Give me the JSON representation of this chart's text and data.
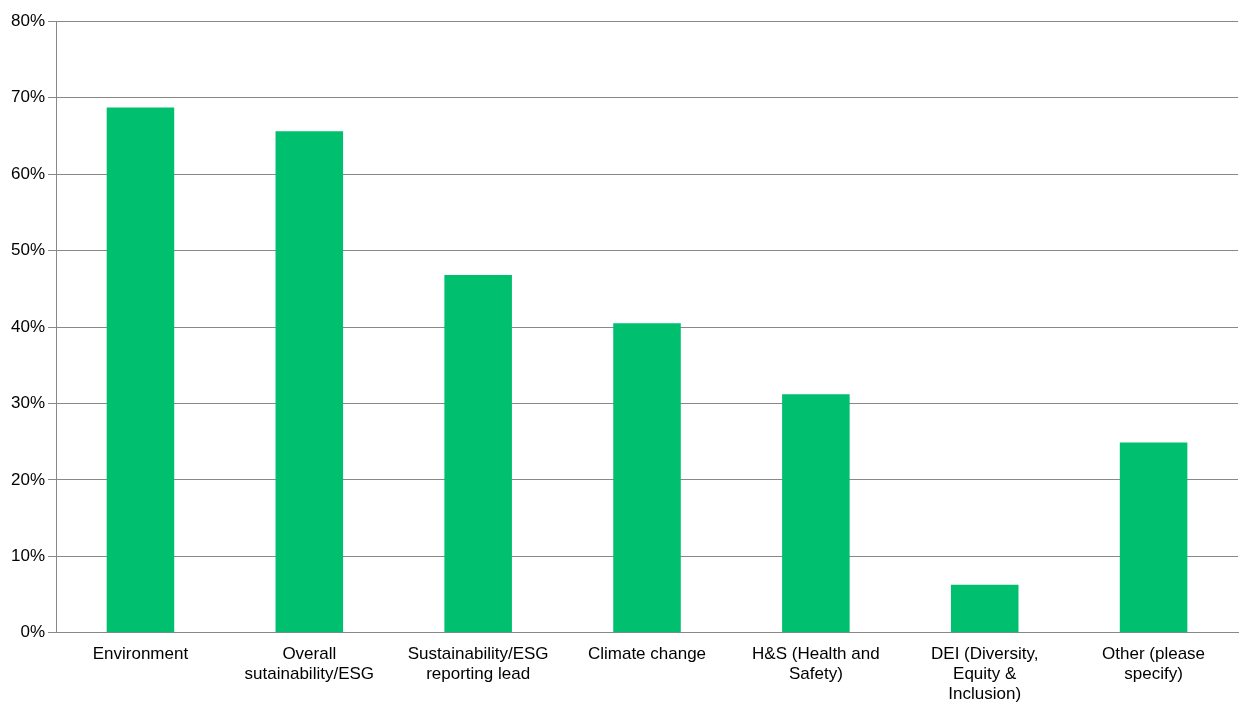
{
  "chart_data": {
    "type": "bar",
    "categories": [
      "Environment",
      "Overall sutainability/ESG",
      "Sustainability/ESG reporting lead",
      "Climate change",
      "H&S (Health and Safety)",
      "DEI (Diversity, Equity & Inclusion)",
      "Other (please specify)"
    ],
    "values": [
      68.7,
      65.6,
      46.8,
      40.5,
      31.2,
      6.3,
      24.9
    ],
    "color": "#00bf6f",
    "ylim": [
      0,
      80
    ],
    "yticks": [
      {
        "value": 0,
        "label": "0%"
      },
      {
        "value": 10,
        "label": "10%"
      },
      {
        "value": 20,
        "label": "20%"
      },
      {
        "value": 30,
        "label": "30%"
      },
      {
        "value": 40,
        "label": "40%"
      },
      {
        "value": 50,
        "label": "50%"
      },
      {
        "value": 60,
        "label": "60%"
      },
      {
        "value": 70,
        "label": "70%"
      },
      {
        "value": 80,
        "label": "80%"
      }
    ],
    "grid": "y",
    "legend": false
  }
}
